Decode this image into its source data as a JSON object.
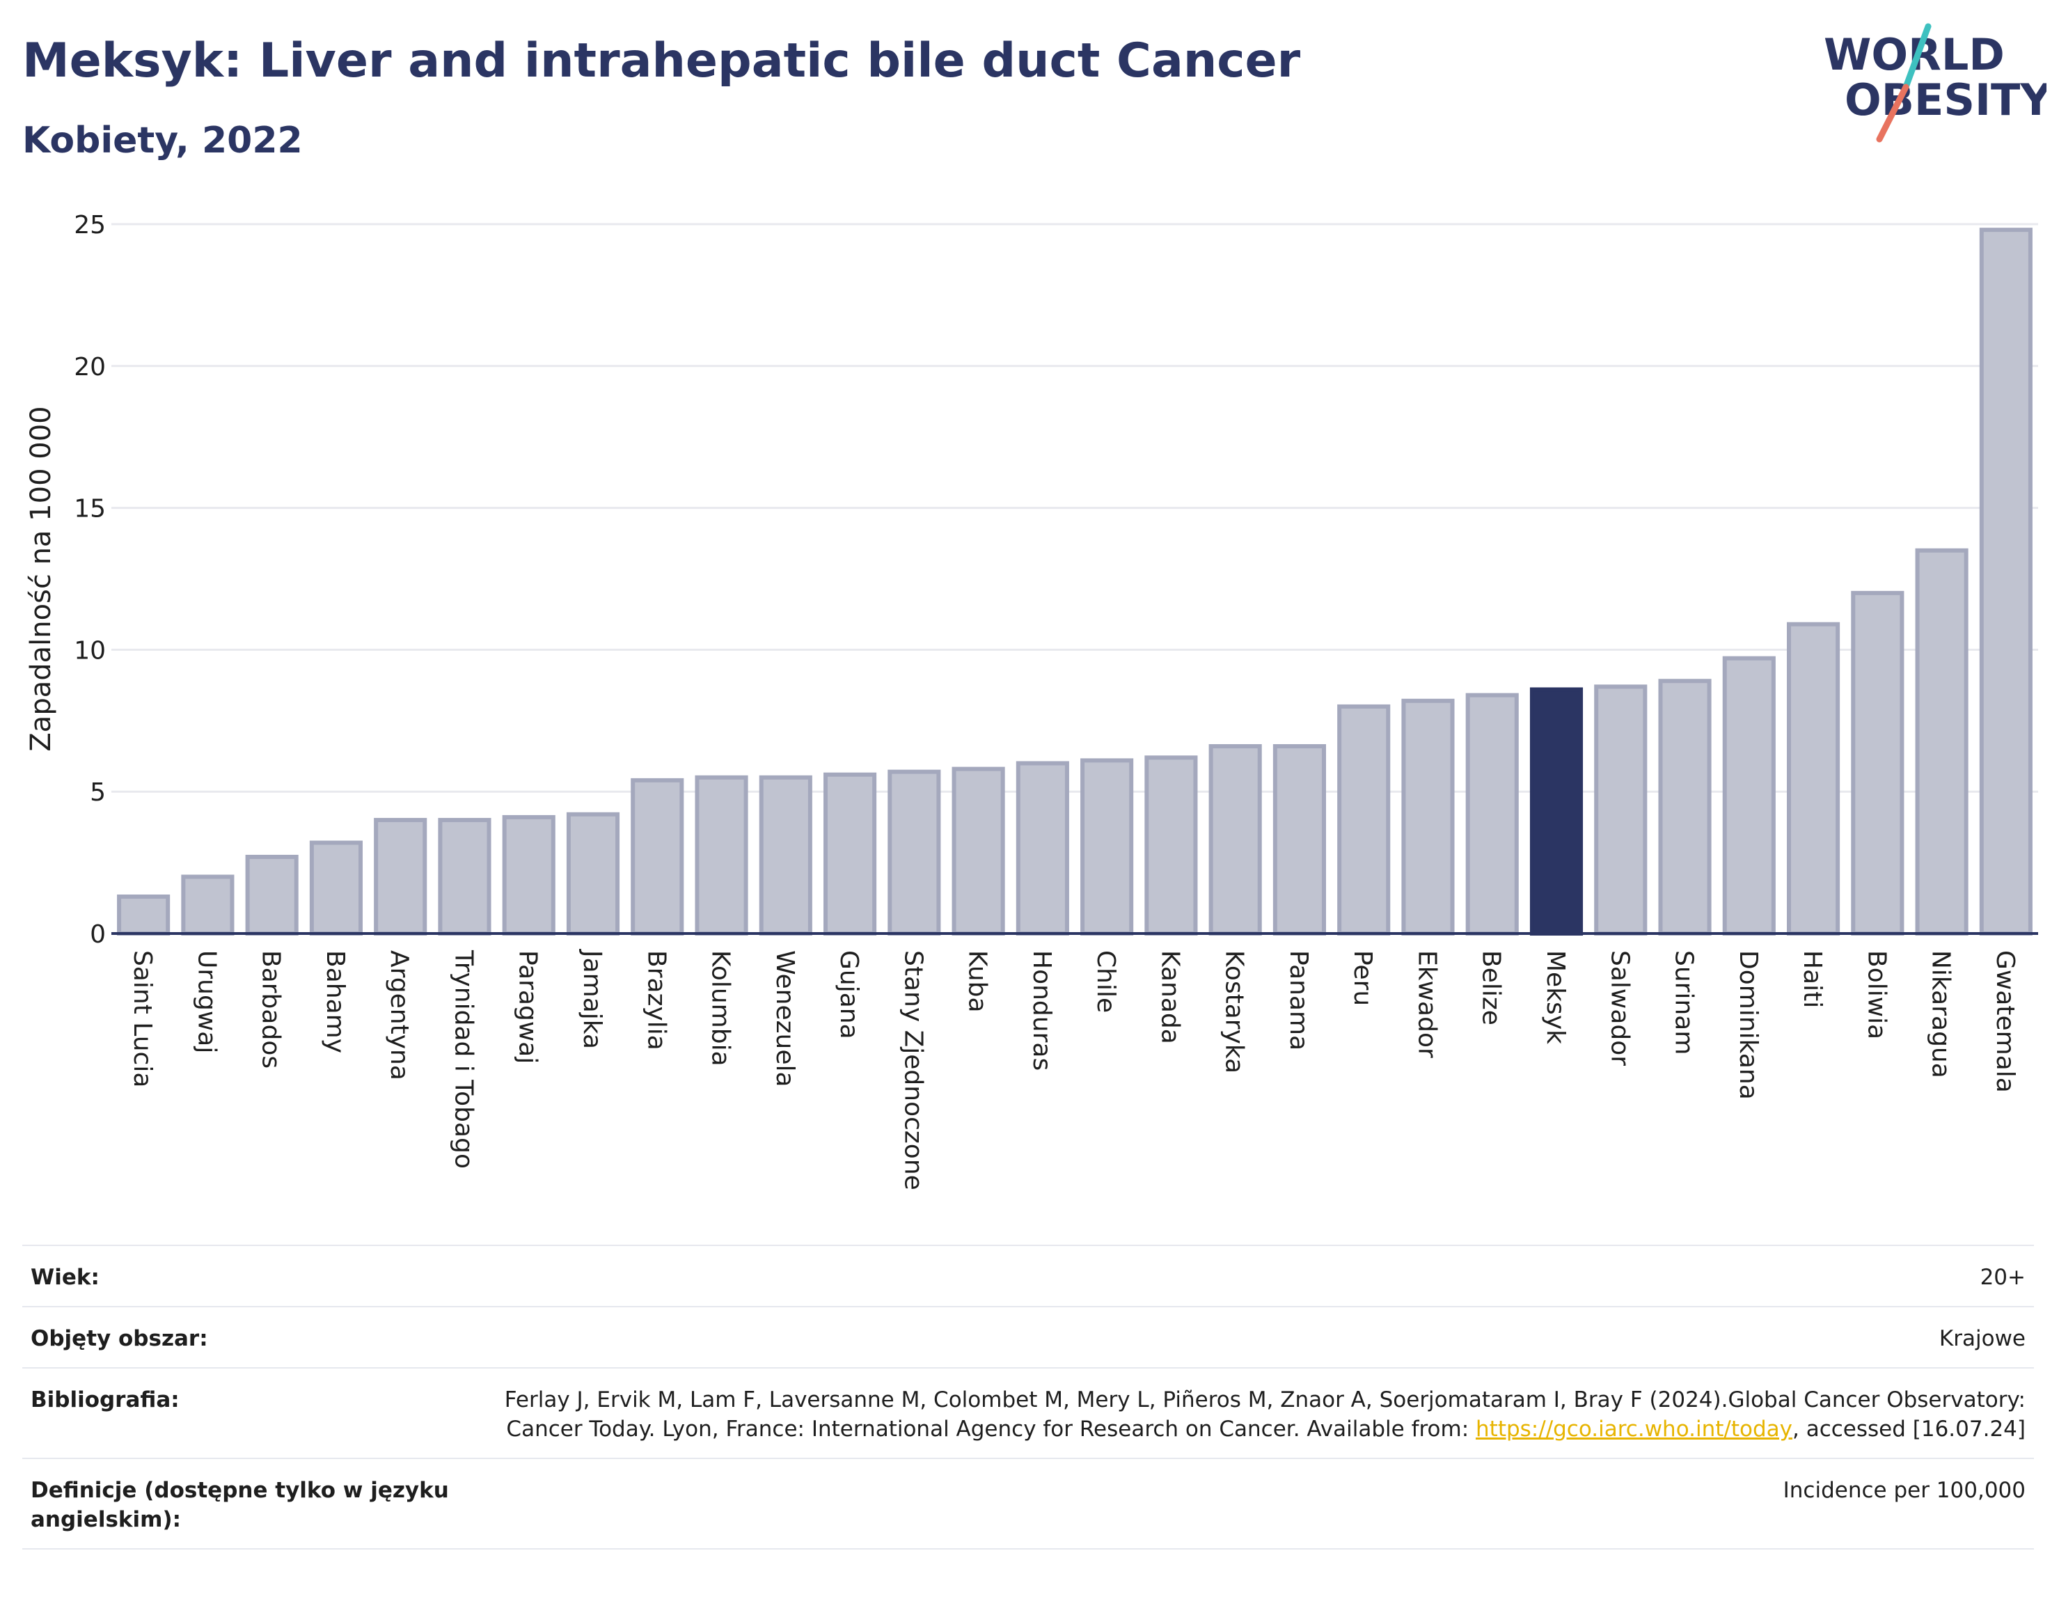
{
  "header": {
    "title": "Meksyk: Liver and intrahepatic bile duct Cancer",
    "subtitle": "Kobiety, 2022"
  },
  "logo": {
    "line1": "WORLD",
    "line2": "OBESITY",
    "accent_teal": "#3ec1c0",
    "accent_coral": "#e8735f"
  },
  "colors": {
    "bar": "#c0c3d0",
    "bar_edge": "#a4a8bd",
    "highlight": "#2b3563",
    "grid": "#e8e9ee",
    "axis": "#2b3563"
  },
  "chart_data": {
    "type": "bar",
    "ylabel": "Zapadalność na 100 000",
    "ylim": [
      0,
      25
    ],
    "yticks": [
      0,
      5,
      10,
      15,
      20,
      25
    ],
    "grid": true,
    "highlight": "Meksyk",
    "categories": [
      "Saint Lucia",
      "Urugwaj",
      "Barbados",
      "Bahamy",
      "Argentyna",
      "Trynidad i Tobago",
      "Paragwaj",
      "Jamajka",
      "Brazylia",
      "Kolumbia",
      "Wenezuela",
      "Gujana",
      "Stany Zjednoczone",
      "Kuba",
      "Honduras",
      "Chile",
      "Kanada",
      "Kostaryka",
      "Panama",
      "Peru",
      "Ekwador",
      "Belize",
      "Meksyk",
      "Salwador",
      "Surinam",
      "Dominikana",
      "Haiti",
      "Boliwia",
      "Nikaragua",
      "Gwatemala"
    ],
    "values": [
      1.3,
      2.0,
      2.7,
      3.2,
      4.0,
      4.0,
      4.1,
      4.2,
      5.4,
      5.5,
      5.5,
      5.6,
      5.7,
      5.8,
      6.0,
      6.1,
      6.2,
      6.6,
      6.6,
      8.0,
      8.2,
      8.4,
      8.6,
      8.7,
      8.9,
      9.7,
      10.9,
      12.0,
      13.5,
      24.8
    ]
  },
  "meta": {
    "rows": [
      {
        "label": "Wiek:",
        "value": "20+"
      },
      {
        "label": "Objęty obszar:",
        "value": "Krajowe"
      },
      {
        "label": "Bibliografia:",
        "value": "Ferlay J, Ervik M, Lam F, Laversanne M, Colombet M, Mery L, Piñeros M, Znaor A, Soerjomataram I, Bray F (2024).Global Cancer Observatory: Cancer Today. Lyon, France: International Agency for Research on Cancer. Available from: ",
        "link": "https://gco.iarc.who.int/today",
        "suffix": ", accessed [16.07.24]"
      },
      {
        "label": "Definicje (dostępne tylko w języku angielskim):",
        "value": "Incidence per 100,000"
      }
    ]
  }
}
